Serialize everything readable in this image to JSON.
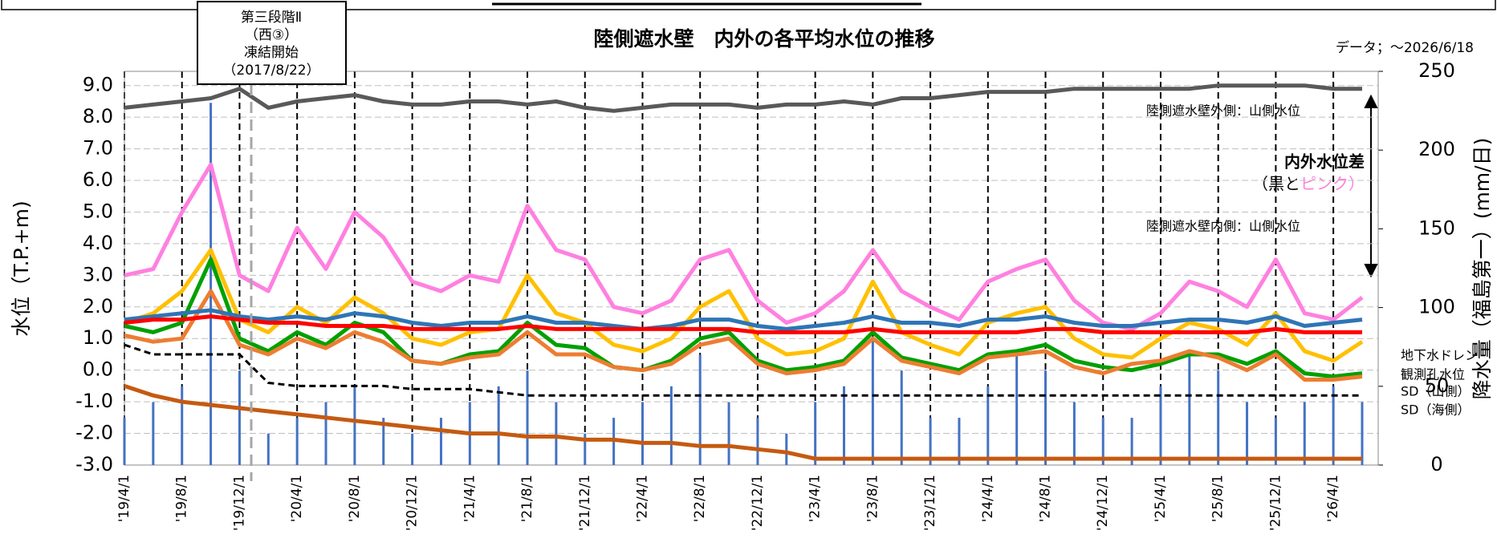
{
  "chart_data": {
    "type": "line",
    "title": "陸側遮水壁　内外の各平均水位の推移",
    "subtitle": "データ；～2026/6/18",
    "y_label": "水位（T.P.+m)",
    "y2_label": "降水量（福島第一）(mm/日)",
    "annotation_box": [
      "第三段階Ⅱ",
      "（西③）",
      "凍結開始",
      "（2017/8/22）"
    ],
    "diff_label": "内外水位差",
    "diff_sub": [
      "（黒と",
      "ピンク）"
    ],
    "grid": true,
    "ylim": [
      -3,
      9.45
    ],
    "yticks": [
      {
        "value": -3,
        "label": "-3.0"
      },
      {
        "value": -2,
        "label": "-2.0"
      },
      {
        "value": -1,
        "label": "-1.0"
      },
      {
        "value": 0,
        "label": "0.0"
      },
      {
        "value": 1,
        "label": "1.0"
      },
      {
        "value": 2,
        "label": "2.0"
      },
      {
        "value": 3,
        "label": "3.0"
      },
      {
        "value": 4,
        "label": "4.0"
      },
      {
        "value": 5,
        "label": "5.0"
      },
      {
        "value": 6,
        "label": "6.0"
      },
      {
        "value": 7,
        "label": "7.0"
      },
      {
        "value": 8,
        "label": "8.0"
      },
      {
        "value": 9,
        "label": "9.0"
      }
    ],
    "y2lim": [
      0,
      250
    ],
    "y2ticks": [
      0,
      50,
      100,
      150,
      200,
      250
    ],
    "xticks": [
      "'19/4/1",
      "'19/8/1",
      "'19/12/1",
      "'20/4/1",
      "'20/8/1",
      "'20/12/1",
      "'21/4/1",
      "'21/8/1",
      "'21/12/1",
      "'22/4/1",
      "'22/8/1",
      "'22/12/1",
      "'23/4/1",
      "'23/8/1",
      "'23/12/1",
      "'24/4/1",
      "'24/8/1",
      "'24/12/1",
      "'25/4/1",
      "'25/8/1",
      "'25/12/1",
      "'26/4/1"
    ],
    "x": [
      "'19/4/1",
      "'19/6/1",
      "'19/8/1",
      "'19/10/1",
      "'19/12/1",
      "'20/2/1",
      "'20/4/1",
      "'20/6/1",
      "'20/8/1",
      "'20/10/1",
      "'20/12/1",
      "'21/2/1",
      "'21/4/1",
      "'21/6/1",
      "'21/8/1",
      "'21/10/1",
      "'21/12/1",
      "'22/2/1",
      "'22/4/1",
      "'22/6/1",
      "'22/8/1",
      "'22/10/1",
      "'22/12/1",
      "'23/2/1",
      "'23/4/1",
      "'23/6/1",
      "'23/8/1",
      "'23/10/1",
      "'23/12/1",
      "'24/2/1",
      "'24/4/1",
      "'24/6/1",
      "'24/8/1",
      "'24/10/1",
      "'24/12/1",
      "'25/2/1",
      "'25/4/1",
      "'25/6/1",
      "'25/8/1",
      "'25/10/1",
      "'25/12/1",
      "'26/2/1",
      "'26/4/1",
      "'26/6/1"
    ],
    "series": [
      {
        "type": "bar",
        "axis": "y2",
        "color": "#4472c4",
        "values": [
          30,
          40,
          50,
          230,
          60,
          20,
          30,
          40,
          50,
          30,
          20,
          30,
          40,
          50,
          60,
          40,
          20,
          30,
          40,
          50,
          70,
          40,
          30,
          20,
          40,
          50,
          80,
          60,
          30,
          30,
          50,
          70,
          60,
          40,
          30,
          30,
          50,
          70,
          60,
          40,
          30,
          40,
          50,
          40
        ]
      },
      {
        "name": "陸側遮水壁外側：山側水位",
        "color": "#595959",
        "values": [
          8.3,
          8.4,
          8.5,
          8.6,
          8.9,
          8.3,
          8.5,
          8.6,
          8.7,
          8.5,
          8.4,
          8.4,
          8.5,
          8.5,
          8.4,
          8.5,
          8.3,
          8.2,
          8.3,
          8.4,
          8.4,
          8.4,
          8.3,
          8.4,
          8.4,
          8.5,
          8.4,
          8.6,
          8.6,
          8.7,
          8.8,
          8.8,
          8.8,
          8.9,
          8.9,
          8.9,
          8.9,
          8.9,
          9.0,
          9.0,
          9.0,
          9.0,
          8.9,
          8.9
        ]
      },
      {
        "name": "陸側遮水壁内側：山側水位",
        "color": "#ff80e0",
        "values": [
          3.0,
          3.2,
          5.0,
          6.5,
          3.0,
          2.5,
          4.5,
          3.2,
          5.0,
          4.2,
          2.8,
          2.5,
          3.0,
          2.8,
          5.2,
          3.8,
          3.5,
          2.0,
          1.8,
          2.2,
          3.5,
          3.8,
          2.2,
          1.5,
          1.8,
          2.5,
          3.8,
          2.5,
          2.0,
          1.6,
          2.8,
          3.2,
          3.5,
          2.2,
          1.5,
          1.3,
          1.8,
          2.8,
          2.5,
          2.0,
          3.5,
          1.8,
          1.6,
          2.3
        ]
      },
      {
        "color": "#ffc000",
        "values": [
          1.5,
          1.8,
          2.5,
          3.8,
          1.6,
          1.2,
          2.0,
          1.5,
          2.3,
          1.8,
          1.0,
          0.8,
          1.2,
          1.3,
          3.0,
          1.8,
          1.5,
          0.8,
          0.6,
          1.0,
          2.0,
          2.5,
          1.0,
          0.5,
          0.6,
          1.0,
          2.8,
          1.2,
          0.8,
          0.5,
          1.5,
          1.8,
          2.0,
          1.0,
          0.5,
          0.4,
          1.0,
          1.5,
          1.3,
          0.8,
          1.8,
          0.6,
          0.3,
          0.9
        ]
      },
      {
        "name": "SD（山側）",
        "color": "#00a000",
        "values": [
          1.4,
          1.2,
          1.5,
          3.5,
          1.0,
          0.6,
          1.2,
          0.8,
          1.5,
          1.2,
          0.3,
          0.2,
          0.5,
          0.6,
          1.5,
          0.8,
          0.7,
          0.1,
          0.0,
          0.3,
          1.0,
          1.2,
          0.3,
          0.0,
          0.1,
          0.3,
          1.2,
          0.4,
          0.2,
          0.0,
          0.5,
          0.6,
          0.8,
          0.3,
          0.1,
          0.0,
          0.2,
          0.5,
          0.5,
          0.2,
          0.6,
          -0.1,
          -0.2,
          -0.1
        ]
      },
      {
        "name": "SD（海側）",
        "color": "#ed7d31",
        "values": [
          1.1,
          0.9,
          1.0,
          2.5,
          0.8,
          0.5,
          1.0,
          0.7,
          1.2,
          0.9,
          0.3,
          0.2,
          0.4,
          0.5,
          1.2,
          0.5,
          0.5,
          0.1,
          0.0,
          0.2,
          0.8,
          1.0,
          0.2,
          -0.1,
          0.0,
          0.2,
          1.0,
          0.3,
          0.1,
          -0.1,
          0.4,
          0.5,
          0.6,
          0.1,
          -0.1,
          0.2,
          0.3,
          0.6,
          0.4,
          0.0,
          0.5,
          -0.3,
          -0.3,
          -0.2
        ]
      },
      {
        "name": "観測孔水位",
        "color": "#2e75b6",
        "values": [
          1.6,
          1.7,
          1.8,
          1.9,
          1.7,
          1.6,
          1.7,
          1.6,
          1.8,
          1.7,
          1.5,
          1.4,
          1.5,
          1.5,
          1.7,
          1.5,
          1.5,
          1.4,
          1.3,
          1.4,
          1.6,
          1.6,
          1.4,
          1.3,
          1.4,
          1.5,
          1.7,
          1.5,
          1.5,
          1.4,
          1.6,
          1.6,
          1.7,
          1.5,
          1.4,
          1.4,
          1.5,
          1.6,
          1.6,
          1.5,
          1.7,
          1.4,
          1.5,
          1.6
        ]
      },
      {
        "name": "地下水ドレン",
        "color": "#ff0000",
        "values": [
          1.5,
          1.6,
          1.6,
          1.7,
          1.6,
          1.5,
          1.5,
          1.4,
          1.4,
          1.4,
          1.3,
          1.3,
          1.3,
          1.3,
          1.4,
          1.3,
          1.3,
          1.3,
          1.3,
          1.3,
          1.3,
          1.3,
          1.2,
          1.2,
          1.2,
          1.2,
          1.3,
          1.2,
          1.2,
          1.2,
          1.2,
          1.2,
          1.3,
          1.3,
          1.2,
          1.2,
          1.2,
          1.2,
          1.2,
          1.2,
          1.3,
          1.2,
          1.2,
          1.2
        ]
      },
      {
        "color": "#000000",
        "dash": true,
        "values": [
          0.8,
          0.5,
          0.5,
          0.5,
          0.5,
          -0.4,
          -0.5,
          -0.5,
          -0.5,
          -0.5,
          -0.6,
          -0.6,
          -0.6,
          -0.7,
          -0.8,
          -0.8,
          -0.8,
          -0.8,
          -0.8,
          -0.8,
          -0.8,
          -0.8,
          -0.8,
          -0.8,
          -0.8,
          -0.8,
          -0.8,
          -0.8,
          -0.8,
          -0.8,
          -0.8,
          -0.8,
          -0.8,
          -0.8,
          -0.8,
          -0.8,
          -0.8,
          -0.8,
          -0.8,
          -0.8,
          -0.8,
          -0.8,
          -0.8,
          -0.8
        ]
      },
      {
        "color": "#c55a11",
        "values": [
          -0.5,
          -0.8,
          -1.0,
          -1.1,
          -1.2,
          -1.3,
          -1.4,
          -1.5,
          -1.6,
          -1.7,
          -1.8,
          -1.9,
          -2.0,
          -2.0,
          -2.1,
          -2.1,
          -2.2,
          -2.2,
          -2.3,
          -2.3,
          -2.4,
          -2.4,
          -2.5,
          -2.6,
          -2.8,
          -2.8,
          -2.8,
          -2.8,
          -2.8,
          -2.8,
          -2.8,
          -2.8,
          -2.8,
          -2.8,
          -2.8,
          -2.8,
          -2.8,
          -2.8,
          -2.8,
          -2.8,
          -2.8,
          -2.8,
          -2.8,
          -2.8
        ]
      }
    ]
  }
}
